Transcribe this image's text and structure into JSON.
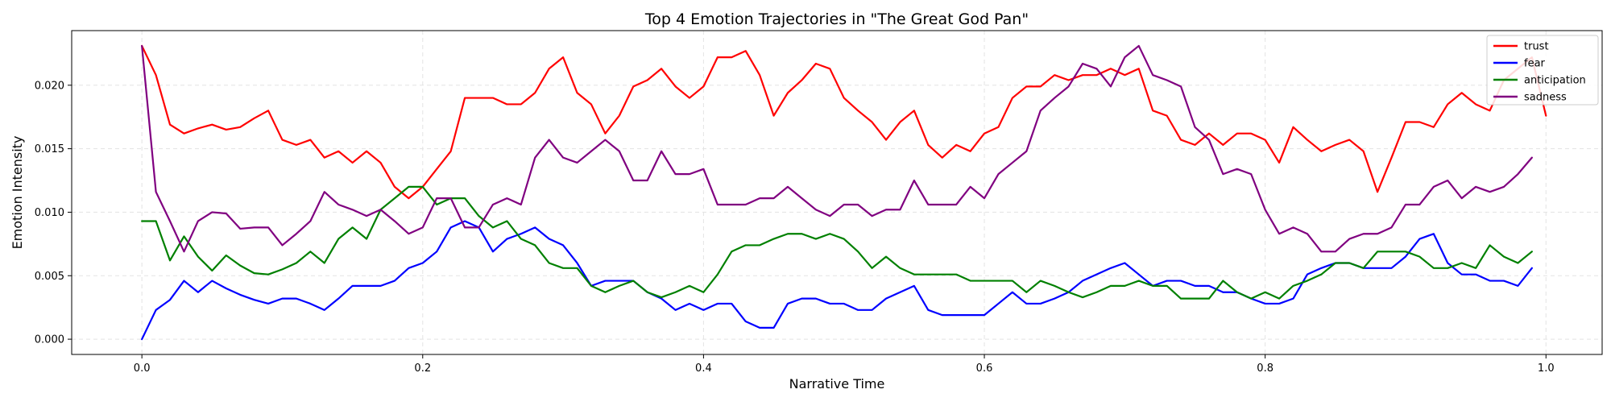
{
  "chart_data": {
    "type": "line",
    "title": "Top 4 Emotion Trajectories in \"The Great God Pan\"",
    "xlabel": "Narrative Time",
    "ylabel": "Emotion Intensity",
    "xlim": [
      -0.05,
      1.04
    ],
    "ylim": [
      -0.0012,
      0.0243
    ],
    "xticks": [
      0.0,
      0.2,
      0.4,
      0.6,
      0.8,
      1.0
    ],
    "xtick_labels": [
      "0.0",
      "0.2",
      "0.4",
      "0.6",
      "0.8",
      "1.0"
    ],
    "yticks": [
      0.0,
      0.005,
      0.01,
      0.015,
      0.02
    ],
    "ytick_labels": [
      "0.000",
      "0.005",
      "0.010",
      "0.015",
      "0.020"
    ],
    "grid": true,
    "legend_position": "top-right",
    "x_start": 0.0,
    "x_step": 0.01,
    "series": [
      {
        "name": "trust",
        "color": "#ff0000",
        "values": [
          0.0231,
          0.0208,
          0.0169,
          0.0162,
          0.0166,
          0.0169,
          0.0165,
          0.0167,
          0.0174,
          0.018,
          0.0157,
          0.0153,
          0.0157,
          0.0143,
          0.0148,
          0.0139,
          0.0148,
          0.0139,
          0.012,
          0.0111,
          0.012,
          0.0134,
          0.0148,
          0.019,
          0.019,
          0.019,
          0.0185,
          0.0185,
          0.0194,
          0.0213,
          0.0222,
          0.0194,
          0.0185,
          0.0162,
          0.0176,
          0.0199,
          0.0204,
          0.0213,
          0.0199,
          0.019,
          0.0199,
          0.0222,
          0.0222,
          0.0227,
          0.0208,
          0.0176,
          0.0194,
          0.0204,
          0.0217,
          0.0213,
          0.019,
          0.018,
          0.0171,
          0.0157,
          0.0171,
          0.018,
          0.0153,
          0.0143,
          0.0153,
          0.0148,
          0.0162,
          0.0167,
          0.019,
          0.0199,
          0.0199,
          0.0208,
          0.0204,
          0.0208,
          0.0208,
          0.0213,
          0.0208,
          0.0213,
          0.018,
          0.0176,
          0.0157,
          0.0153,
          0.0162,
          0.0153,
          0.0162,
          0.0162,
          0.0157,
          0.0139,
          0.0167,
          0.0157,
          0.0148,
          0.0153,
          0.0157,
          0.0148,
          0.0116,
          0.0143,
          0.0171,
          0.0171,
          0.0167,
          0.0185,
          0.0194,
          0.0185,
          0.018,
          0.0204,
          0.0213,
          0.0222,
          0.0176
        ]
      },
      {
        "name": "fear",
        "color": "#0000ff",
        "values": [
          0.0,
          0.0023,
          0.0031,
          0.0046,
          0.0037,
          0.0046,
          0.004,
          0.0035,
          0.0031,
          0.0028,
          0.0032,
          0.0032,
          0.0028,
          0.0023,
          0.0032,
          0.0042,
          0.0042,
          0.0042,
          0.0046,
          0.0056,
          0.006,
          0.0069,
          0.0088,
          0.0093,
          0.0088,
          0.0069,
          0.0079,
          0.0083,
          0.0088,
          0.0079,
          0.0074,
          0.006,
          0.0042,
          0.0046,
          0.0046,
          0.0046,
          0.0037,
          0.0032,
          0.0023,
          0.0028,
          0.0023,
          0.0028,
          0.0028,
          0.0014,
          0.0009,
          0.0009,
          0.0028,
          0.0032,
          0.0032,
          0.0028,
          0.0028,
          0.0023,
          0.0023,
          0.0032,
          0.0037,
          0.0042,
          0.0023,
          0.0019,
          0.0019,
          0.0019,
          0.0019,
          0.0028,
          0.0037,
          0.0028,
          0.0028,
          0.0032,
          0.0037,
          0.0046,
          0.0051,
          0.0056,
          0.006,
          0.0051,
          0.0042,
          0.0046,
          0.0046,
          0.0042,
          0.0042,
          0.0037,
          0.0037,
          0.0032,
          0.0028,
          0.0028,
          0.0032,
          0.0051,
          0.0056,
          0.006,
          0.006,
          0.0056,
          0.0056,
          0.0056,
          0.0065,
          0.0079,
          0.0083,
          0.006,
          0.0051,
          0.0051,
          0.0046,
          0.0046,
          0.0042,
          0.0056
        ]
      },
      {
        "name": "anticipation",
        "color": "#008000",
        "values": [
          0.0093,
          0.0093,
          0.0062,
          0.0081,
          0.0065,
          0.0054,
          0.0066,
          0.0058,
          0.0052,
          0.0051,
          0.0055,
          0.006,
          0.0069,
          0.006,
          0.0079,
          0.0088,
          0.0079,
          0.0102,
          0.0111,
          0.012,
          0.012,
          0.0106,
          0.0111,
          0.0111,
          0.0097,
          0.0088,
          0.0093,
          0.0079,
          0.0074,
          0.006,
          0.0056,
          0.0056,
          0.0042,
          0.0037,
          0.0042,
          0.0046,
          0.0037,
          0.0033,
          0.0037,
          0.0042,
          0.0037,
          0.0051,
          0.0069,
          0.0074,
          0.0074,
          0.0079,
          0.0083,
          0.0083,
          0.0079,
          0.0083,
          0.0079,
          0.0069,
          0.0056,
          0.0065,
          0.0056,
          0.0051,
          0.0051,
          0.0051,
          0.0051,
          0.0046,
          0.0046,
          0.0046,
          0.0046,
          0.0037,
          0.0046,
          0.0042,
          0.0037,
          0.0033,
          0.0037,
          0.0042,
          0.0042,
          0.0046,
          0.0042,
          0.0042,
          0.0032,
          0.0032,
          0.0032,
          0.0046,
          0.0037,
          0.0032,
          0.0037,
          0.0032,
          0.0042,
          0.0046,
          0.0051,
          0.006,
          0.006,
          0.0056,
          0.0069,
          0.0069,
          0.0069,
          0.0065,
          0.0056,
          0.0056,
          0.006,
          0.0056,
          0.0074,
          0.0065,
          0.006,
          0.0069
        ]
      },
      {
        "name": "sadness",
        "color": "#800080",
        "values": [
          0.0231,
          0.0116,
          0.0093,
          0.0069,
          0.0093,
          0.01,
          0.0099,
          0.0087,
          0.0088,
          0.0088,
          0.0074,
          0.0083,
          0.0093,
          0.0116,
          0.0106,
          0.0102,
          0.0097,
          0.0102,
          0.0093,
          0.0083,
          0.0088,
          0.0111,
          0.0111,
          0.0088,
          0.0088,
          0.0106,
          0.0111,
          0.0106,
          0.0143,
          0.0157,
          0.0143,
          0.0139,
          0.0148,
          0.0157,
          0.0148,
          0.0125,
          0.0125,
          0.0148,
          0.013,
          0.013,
          0.0134,
          0.0106,
          0.0106,
          0.0106,
          0.0111,
          0.0111,
          0.012,
          0.0111,
          0.0102,
          0.0097,
          0.0106,
          0.0106,
          0.0097,
          0.0102,
          0.0102,
          0.0125,
          0.0106,
          0.0106,
          0.0106,
          0.012,
          0.0111,
          0.013,
          0.0139,
          0.0148,
          0.018,
          0.019,
          0.0199,
          0.0217,
          0.0213,
          0.0199,
          0.0222,
          0.0231,
          0.0208,
          0.0204,
          0.0199,
          0.0167,
          0.0157,
          0.013,
          0.0134,
          0.013,
          0.0102,
          0.0083,
          0.0088,
          0.0083,
          0.0069,
          0.0069,
          0.0079,
          0.0083,
          0.0083,
          0.0088,
          0.0106,
          0.0106,
          0.012,
          0.0125,
          0.0111,
          0.012,
          0.0116,
          0.012,
          0.013,
          0.0143
        ]
      }
    ]
  }
}
